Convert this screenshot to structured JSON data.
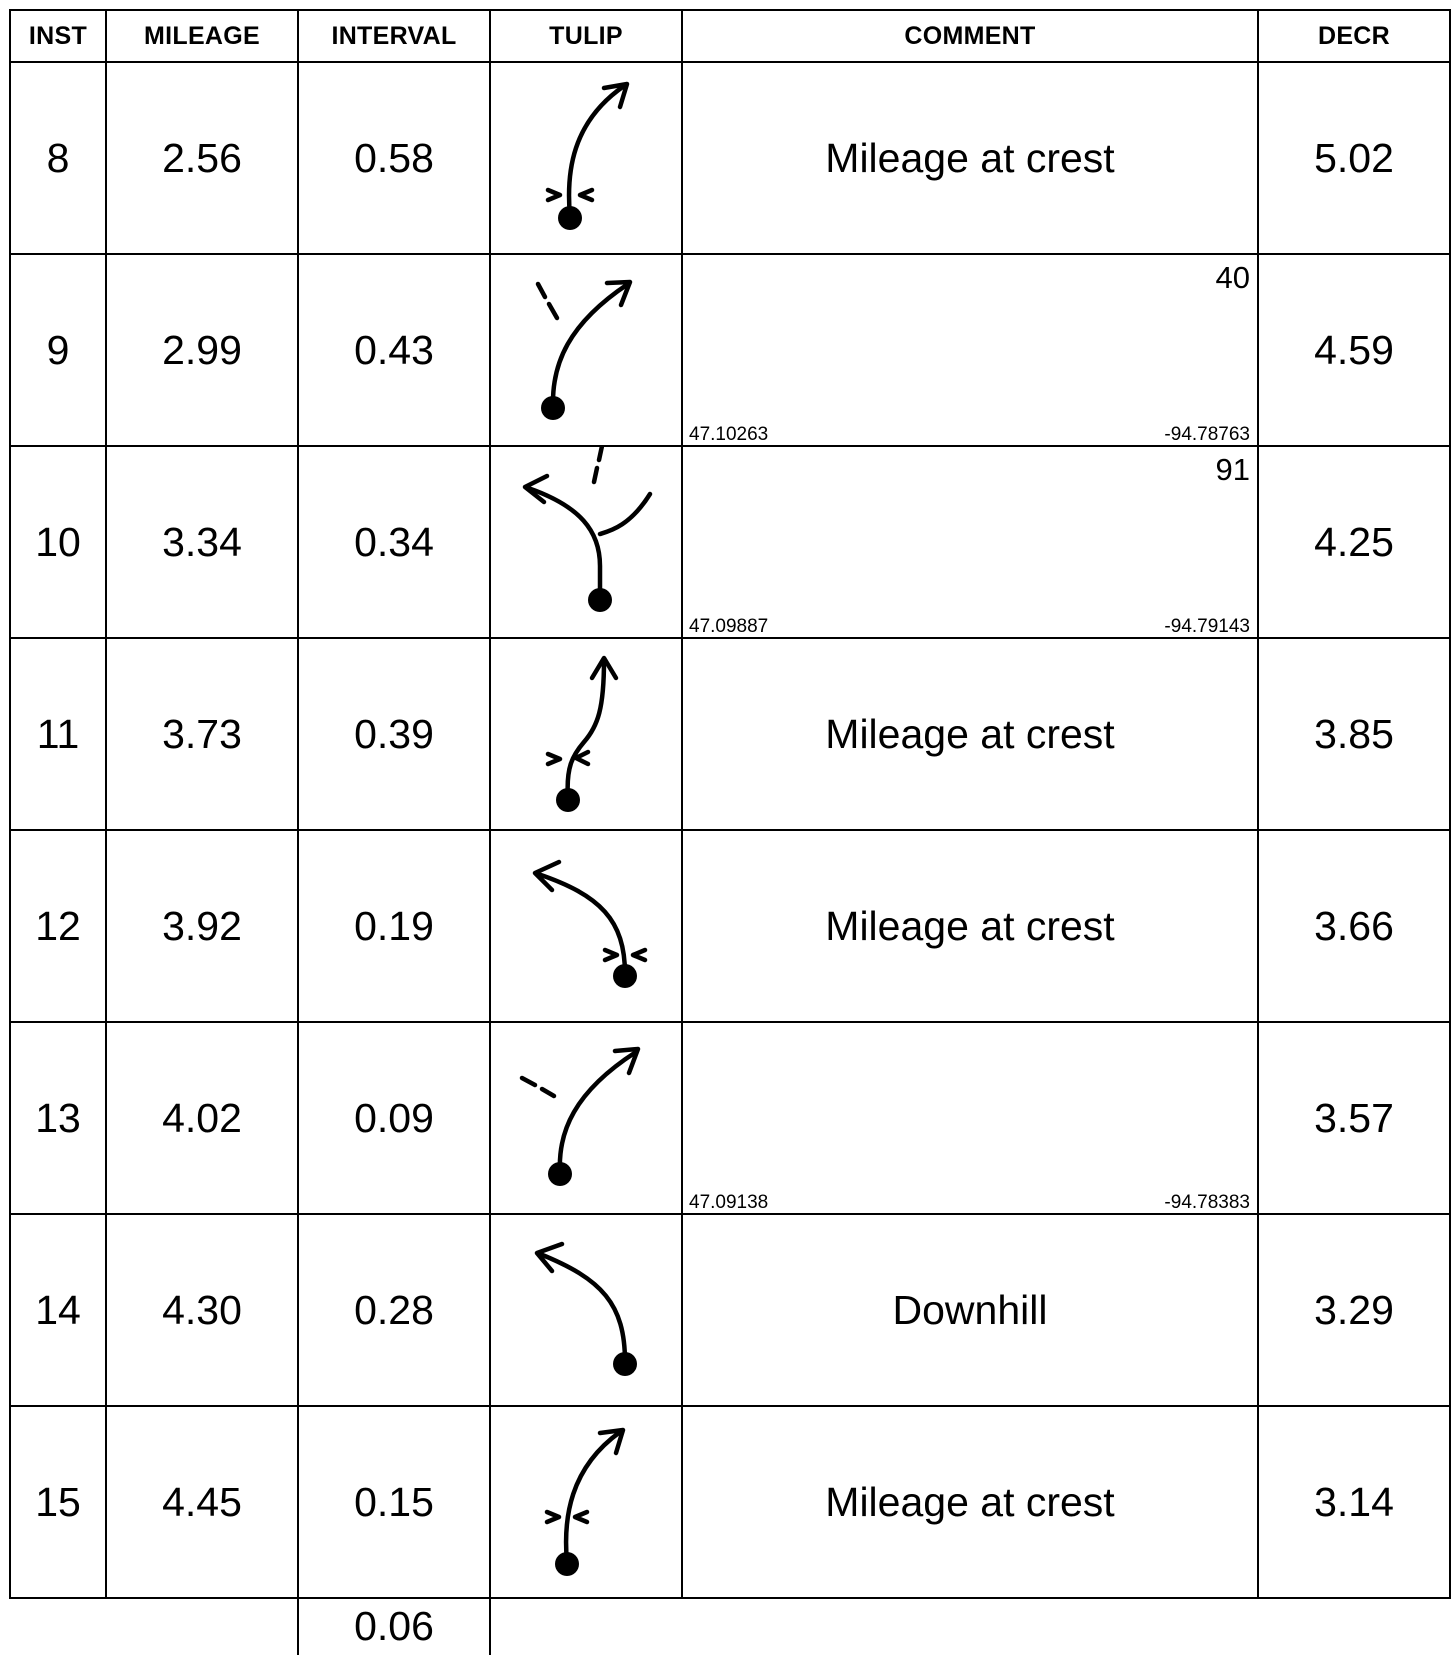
{
  "table": {
    "headers": {
      "inst": "INST",
      "mileage": "MILEAGE",
      "interval": "INTERVAL",
      "tulip": "TULIP",
      "comment": "COMMENT",
      "decr": "DECR"
    },
    "rows": [
      {
        "inst": "8",
        "mileage": "2.56",
        "interval": "0.58",
        "comment": "Mileage at crest",
        "distance": "",
        "lat": "",
        "lon": "",
        "decr": "5.02",
        "tulip": "curve-right-crest-icon"
      },
      {
        "inst": "9",
        "mileage": "2.99",
        "interval": "0.43",
        "comment": "",
        "distance": "40",
        "lat": "47.10263",
        "lon": "-94.78763",
        "decr": "4.59",
        "tulip": "fork-bear-right-icon"
      },
      {
        "inst": "10",
        "mileage": "3.34",
        "interval": "0.34",
        "comment": "",
        "distance": "91",
        "lat": "47.09887",
        "lon": "-94.79143",
        "decr": "4.25",
        "tulip": "fork-left-icon"
      },
      {
        "inst": "11",
        "mileage": "3.73",
        "interval": "0.39",
        "comment": "Mileage at crest",
        "distance": "",
        "lat": "",
        "lon": "",
        "decr": "3.85",
        "tulip": "s-curve-crest-icon"
      },
      {
        "inst": "12",
        "mileage": "3.92",
        "interval": "0.19",
        "comment": "Mileage at crest",
        "distance": "",
        "lat": "",
        "lon": "",
        "decr": "3.66",
        "tulip": "curve-left-crest-icon"
      },
      {
        "inst": "13",
        "mileage": "4.02",
        "interval": "0.09",
        "comment": "",
        "distance": "",
        "lat": "47.09138",
        "lon": "-94.78383",
        "decr": "3.57",
        "tulip": "fork-bear-right-icon"
      },
      {
        "inst": "14",
        "mileage": "4.30",
        "interval": "0.28",
        "comment": "Downhill",
        "distance": "",
        "lat": "",
        "lon": "",
        "decr": "3.29",
        "tulip": "curve-left-icon"
      },
      {
        "inst": "15",
        "mileage": "4.45",
        "interval": "0.15",
        "comment": "Mileage at crest",
        "distance": "",
        "lat": "",
        "lon": "",
        "decr": "3.14",
        "tulip": "curve-right-crest-icon"
      }
    ],
    "footer": {
      "interval": "0.06"
    }
  }
}
